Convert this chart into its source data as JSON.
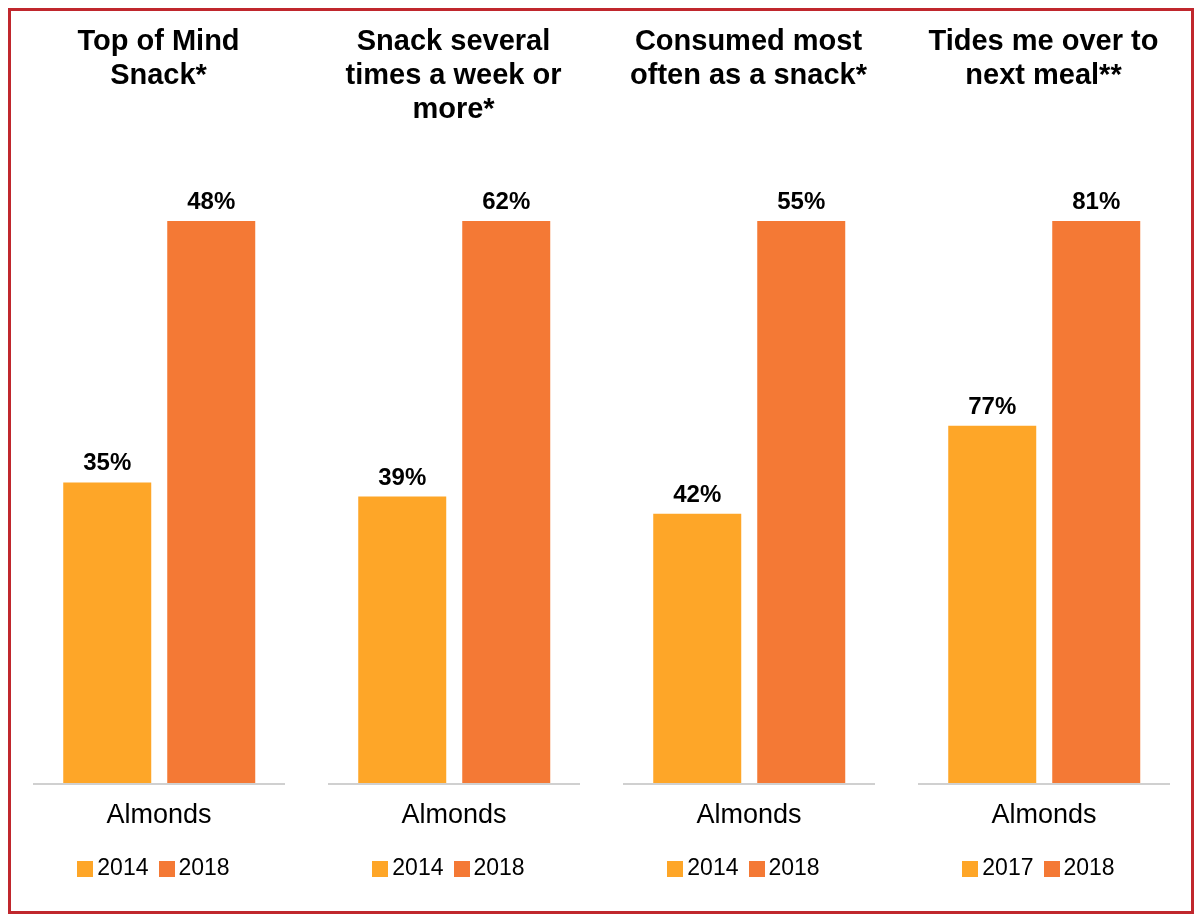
{
  "chart_data": [
    {
      "type": "bar",
      "title": "Top of Mind Snack*",
      "categories": [
        "Almonds"
      ],
      "series": [
        {
          "name": "2014",
          "color": "#fea628",
          "values": [
            35
          ],
          "value_labels": [
            "35%"
          ]
        },
        {
          "name": "2018",
          "color": "#f47935",
          "values": [
            48
          ],
          "value_labels": [
            "48%"
          ]
        }
      ],
      "ylim": [
        20,
        48
      ],
      "tick_labels": "x",
      "legend": "bottom"
    },
    {
      "type": "bar",
      "title": "Snack several times a week or more*",
      "categories": [
        "Almonds"
      ],
      "series": [
        {
          "name": "2014",
          "color": "#fea628",
          "values": [
            39
          ],
          "value_labels": [
            "39%"
          ]
        },
        {
          "name": "2018",
          "color": "#f47935",
          "values": [
            62
          ],
          "value_labels": [
            "62%"
          ]
        }
      ],
      "ylim": [
        15,
        62
      ],
      "tick_labels": "x",
      "legend": "bottom"
    },
    {
      "type": "bar",
      "title": "Consumed most often as a snack*",
      "categories": [
        "Almonds"
      ],
      "series": [
        {
          "name": "2014",
          "color": "#fea628",
          "values": [
            42
          ],
          "value_labels": [
            "42%"
          ]
        },
        {
          "name": "2018",
          "color": "#f47935",
          "values": [
            55
          ],
          "value_labels": [
            "55%"
          ]
        }
      ],
      "ylim": [
        30,
        55
      ],
      "tick_labels": "x",
      "legend": "bottom"
    },
    {
      "type": "bar",
      "title": "Tides me over to next meal**",
      "categories": [
        "Almonds"
      ],
      "series": [
        {
          "name": "2017",
          "color": "#fea628",
          "values": [
            77
          ],
          "value_labels": [
            "77%"
          ]
        },
        {
          "name": "2018",
          "color": "#f47935",
          "values": [
            81
          ],
          "value_labels": [
            "81%"
          ]
        }
      ],
      "ylim": [
        70,
        81
      ],
      "tick_labels": "x",
      "legend": "bottom"
    }
  ]
}
